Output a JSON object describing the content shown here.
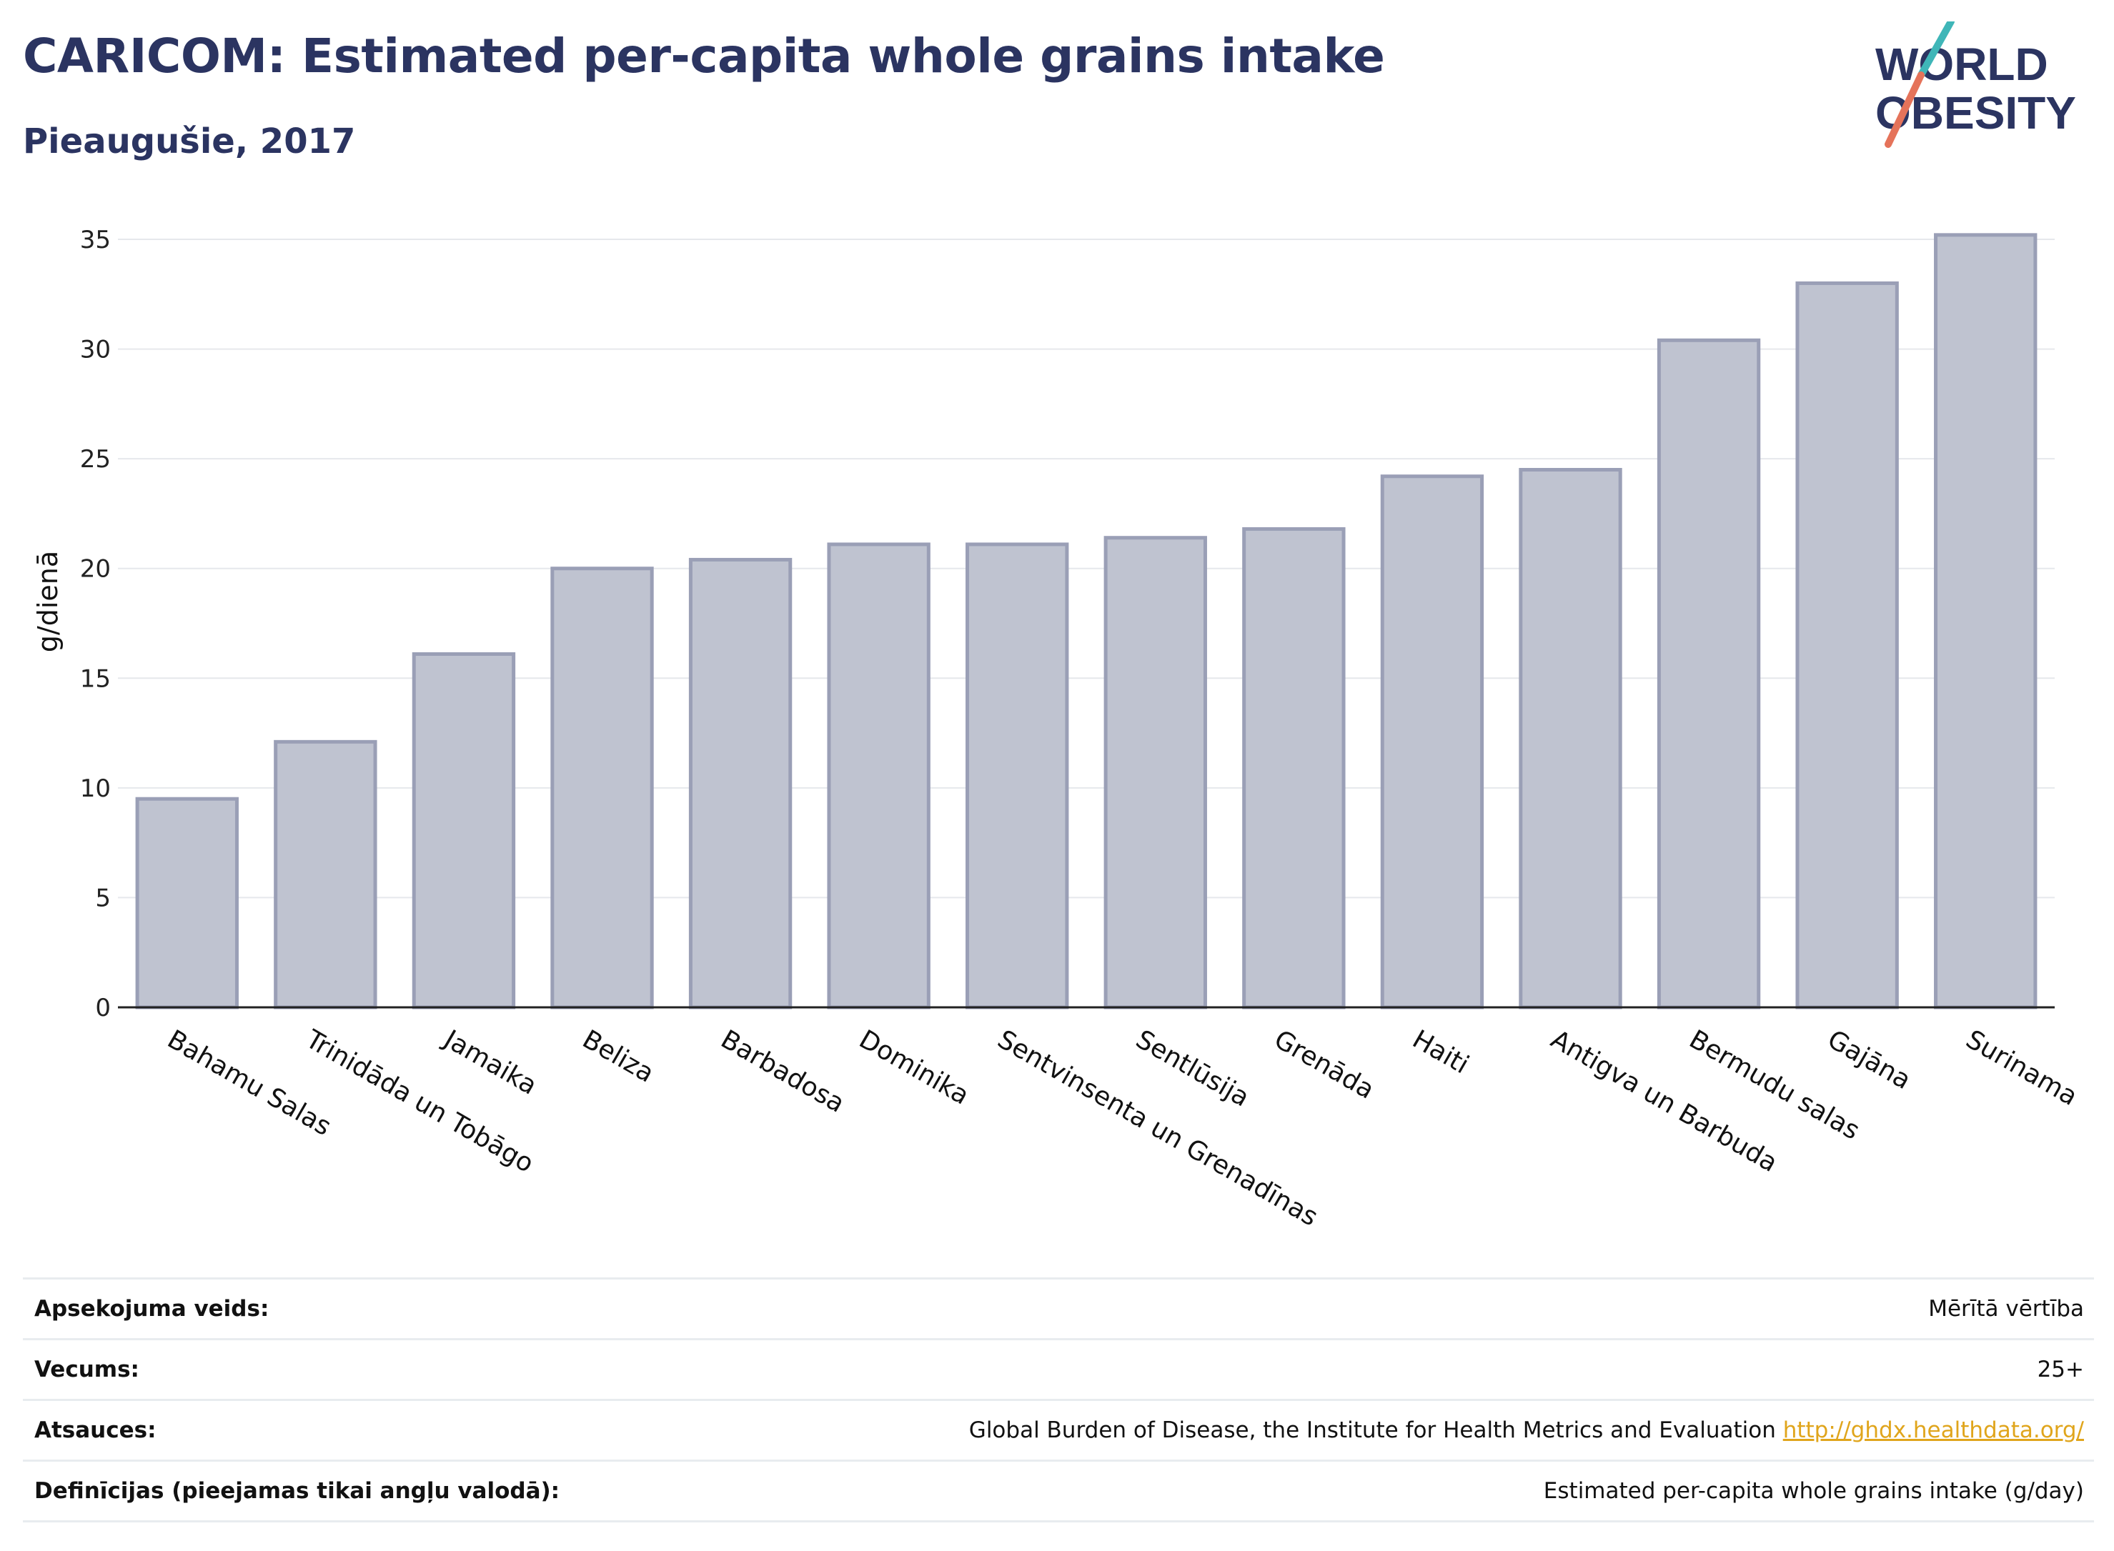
{
  "header": {
    "title": "CARICOM: Estimated per-capita whole grains intake",
    "subtitle": "Pieaugušie, 2017"
  },
  "logo": {
    "line1": "WORLD",
    "line2": "OBESITY"
  },
  "colors": {
    "title": "#2b3461",
    "bar_fill": "#bfc3d0",
    "bar_stroke": "#9a9fb6",
    "link": "#e0a51c"
  },
  "chart_data": {
    "type": "bar",
    "categories": [
      "Bahamu Salas",
      "Trinidāda un Tobāgo",
      "Jamaika",
      "Beliza",
      "Barbadosa",
      "Dominika",
      "Sentvinsenta un Grenadīnas",
      "Sentlūsija",
      "Grenāda",
      "Haiti",
      "Antigva un Barbuda",
      "Bermudu salas",
      "Gajāna",
      "Surinama"
    ],
    "values": [
      9.5,
      12.1,
      16.1,
      20.0,
      20.4,
      21.1,
      21.1,
      21.4,
      21.8,
      24.2,
      24.5,
      30.4,
      33.0,
      35.2
    ],
    "ylabel": "g/dienā",
    "ylim": [
      0,
      35
    ],
    "yticks": [
      0,
      5,
      10,
      15,
      20,
      25,
      30,
      35
    ],
    "grid": true,
    "legend": "none"
  },
  "info": {
    "rows": [
      {
        "key": "Apsekojuma veids:",
        "value": "Mērītā vērtība"
      },
      {
        "key": "Vecums:",
        "value": "25+"
      },
      {
        "key": "Atsauces:",
        "value": "Global Burden of Disease, the Institute for Health Metrics and Evaluation",
        "link": "http://ghdx.healthdata.org/"
      },
      {
        "key": "Definīcijas (pieejamas tikai angļu valodā):",
        "value": "Estimated per-capita whole grains intake (g/day)"
      }
    ]
  }
}
